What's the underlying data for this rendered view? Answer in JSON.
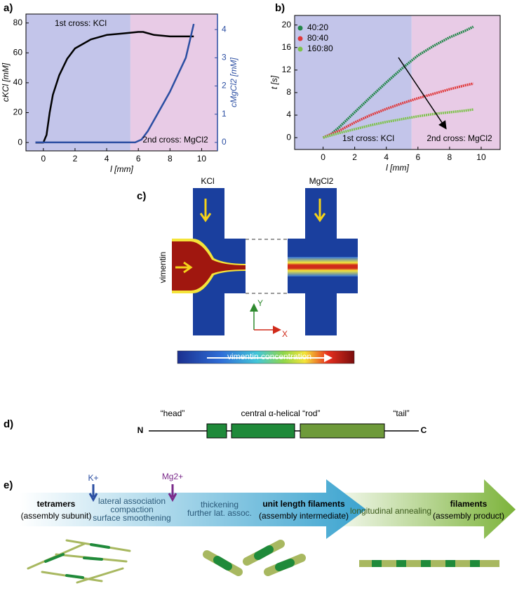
{
  "chart_data": [
    {
      "type": "line",
      "panel_label": "a)",
      "xlabel": "l [mm]",
      "ylabel": "cKCl [mM]",
      "y2label": "cMgCl2 [mM]",
      "xlim": [
        -1.1,
        11
      ],
      "ylim": [
        -5.6,
        86
      ],
      "y2lim": [
        -0.3,
        4.55
      ],
      "xticks": [
        0,
        2,
        4,
        6,
        8,
        10
      ],
      "yticks": [
        0,
        20,
        40,
        60,
        80
      ],
      "y2ticks": [
        0,
        1,
        2,
        3,
        4
      ],
      "y2color": "#2b4ea2",
      "regions": [
        {
          "from": -1.1,
          "to": 5.5,
          "color": "#c3c5ea"
        },
        {
          "from": 5.5,
          "to": 11,
          "color": "#e8cbe6"
        }
      ],
      "annotations": [
        "1st cross: KCl",
        "2nd cross: MgCl2"
      ],
      "series": [
        {
          "color": "#000000",
          "x": [
            -0.5,
            0,
            0.2,
            0.4,
            0.6,
            1,
            1.5,
            2,
            3,
            4,
            5,
            6,
            6.3,
            7,
            8,
            9,
            9.5
          ],
          "values": [
            0,
            0,
            5,
            20,
            32,
            45,
            56,
            63,
            69,
            72,
            73,
            74,
            74,
            72,
            71,
            71,
            71
          ]
        },
        {
          "color": "#2b4ea2",
          "axis": "y2",
          "x": [
            -0.5,
            5.8,
            6.2,
            6.6,
            7,
            8,
            9,
            9.5
          ],
          "values": [
            0,
            0,
            0.1,
            0.4,
            0.8,
            1.8,
            3,
            4.2
          ]
        }
      ]
    },
    {
      "type": "line",
      "panel_label": "b)",
      "xlabel": "l [mm]",
      "ylabel": "t [s]",
      "xlim": [
        -1.8,
        11.2
      ],
      "ylim": [
        -2.1,
        21.7
      ],
      "xticks": [
        0,
        2,
        4,
        6,
        8,
        10
      ],
      "yticks": [
        0,
        4,
        8,
        12,
        16,
        20
      ],
      "legend": "upper left",
      "regions": [
        {
          "from": -1.8,
          "to": 5.6,
          "color": "#c3c5ea"
        },
        {
          "from": 5.6,
          "to": 11.2,
          "color": "#e8cbe6"
        }
      ],
      "annotations": [
        "1st cross: KCl",
        "2nd cross: MgCl2"
      ],
      "series": [
        {
          "name": "40:20",
          "color": "#23864a",
          "x": [
            0,
            0.5,
            1,
            2,
            3,
            4,
            5,
            6,
            7,
            8,
            9,
            9.5
          ],
          "values": [
            0,
            0.6,
            1.8,
            4.5,
            7.2,
            9.8,
            12.3,
            14.6,
            16.3,
            17.8,
            19,
            19.7
          ]
        },
        {
          "name": "80:40",
          "color": "#e0383a",
          "x": [
            0,
            1,
            2,
            3,
            4,
            5,
            6,
            7,
            8,
            9,
            9.5
          ],
          "values": [
            0,
            1.2,
            2.7,
            4,
            5.1,
            6.1,
            7,
            7.8,
            8.6,
            9.3,
            9.6
          ]
        },
        {
          "name": "160:80",
          "color": "#7dc24a",
          "x": [
            0,
            1,
            2,
            3,
            4,
            5,
            6,
            7,
            8,
            9,
            9.5
          ],
          "values": [
            0,
            0.8,
            1.5,
            2.2,
            2.8,
            3.3,
            3.8,
            4.2,
            4.5,
            4.8,
            5
          ]
        }
      ]
    }
  ],
  "panel_c": {
    "label": "c)",
    "inlet_1": "KCl",
    "inlet_2": "MgCl2",
    "side": "vimentin",
    "axis_y": "Y",
    "axis_x": "X",
    "colorbar": "vimentin concentration"
  },
  "panel_d": {
    "label": "d)",
    "n": "N",
    "c": "C",
    "head": "“head”",
    "rod": "central α-helical “rod”",
    "tail": "“tail”"
  },
  "panel_e": {
    "label": "e)",
    "k": "K+",
    "mg": "Mg2+",
    "tetramers": "tetramers",
    "tetramers_sub": "(assembly subunit)",
    "step1": [
      "lateral association",
      "compaction",
      "surface smoothening"
    ],
    "step2": [
      "thickening",
      "further lat. assoc."
    ],
    "ulf": "unit length filaments",
    "ulf_sub": "(assembly intermediate)",
    "annealing": "longitudinal annealing",
    "filaments": "filaments",
    "filaments_sub": "(assembly product)"
  }
}
